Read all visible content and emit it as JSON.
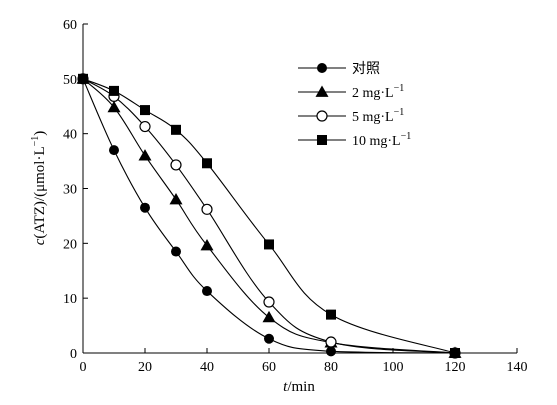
{
  "chart_data": {
    "type": "line",
    "xlabel_italic": "t",
    "xlabel_rest": "/min",
    "ylabel_italic": "c",
    "ylabel_rest": "(ATZ)/(μmol·L",
    "ylabel_sup": "−1",
    "ylabel_close": ")",
    "xlim": [
      0,
      140
    ],
    "ylim": [
      0,
      60
    ],
    "xticks": [
      "0",
      "20",
      "40",
      "60",
      "80",
      "100",
      "120",
      "140"
    ],
    "yticks": [
      "0",
      "10",
      "20",
      "30",
      "40",
      "50",
      "60"
    ],
    "grid": false,
    "legend_position": "top-right",
    "series": [
      {
        "name": "对照",
        "name_sup": "",
        "marker": "filled-circle",
        "x": [
          0,
          10,
          20,
          30,
          40,
          60,
          80,
          120
        ],
        "y": [
          50,
          37,
          26.5,
          18.5,
          11.3,
          2.6,
          0.3,
          0
        ]
      },
      {
        "name": "2 mg·L",
        "name_sup": "−1",
        "marker": "filled-triangle",
        "x": [
          0,
          10,
          20,
          30,
          40,
          60,
          80,
          120
        ],
        "y": [
          50,
          44.8,
          36,
          28,
          19.6,
          6.5,
          1.9,
          0
        ]
      },
      {
        "name": "5 mg·L",
        "name_sup": "−1",
        "marker": "open-circle",
        "x": [
          0,
          10,
          20,
          30,
          40,
          60,
          80,
          120
        ],
        "y": [
          50,
          46.8,
          41.3,
          34.3,
          26.2,
          9.3,
          2,
          0
        ]
      },
      {
        "name": "10 mg·L",
        "name_sup": "−1",
        "marker": "filled-square",
        "x": [
          0,
          10,
          20,
          30,
          40,
          60,
          80,
          120
        ],
        "y": [
          50,
          47.8,
          44.3,
          40.7,
          34.6,
          19.8,
          7,
          0
        ]
      }
    ]
  }
}
